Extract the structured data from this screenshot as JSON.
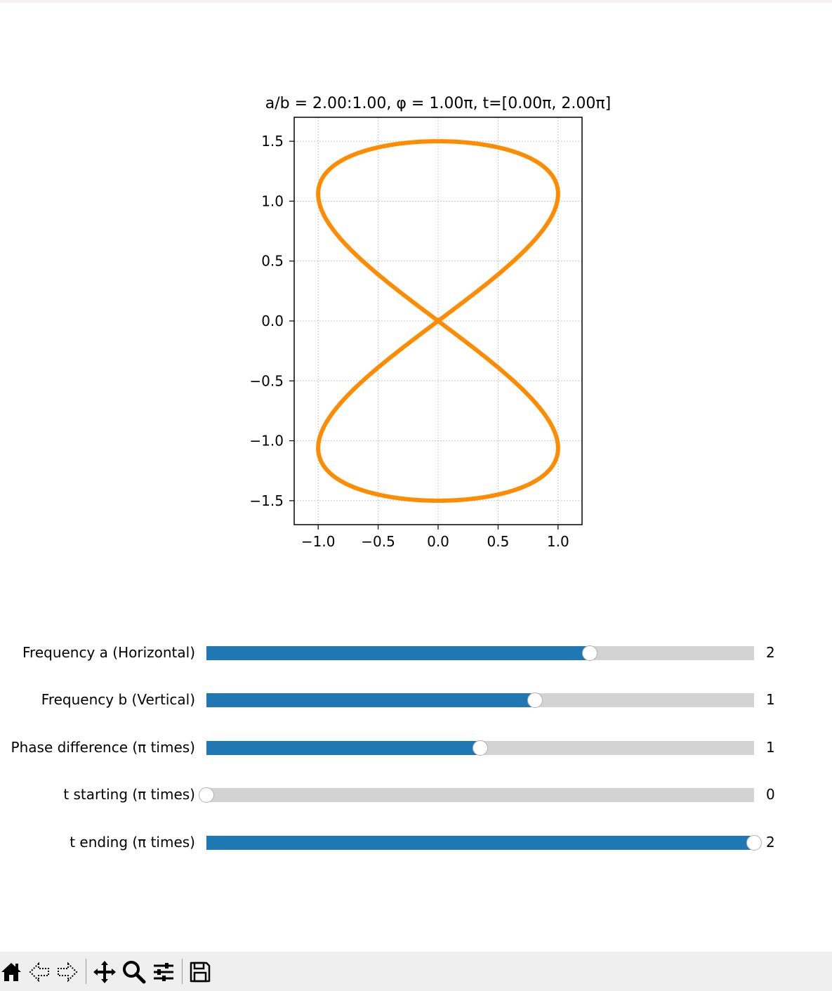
{
  "window": {
    "toolbar": {
      "buttons": [
        {
          "icon": "home-icon",
          "tooltip": "Reset original view"
        },
        {
          "icon": "back-arrow-icon",
          "tooltip": "Back"
        },
        {
          "icon": "forward-arrow-icon",
          "tooltip": "Forward"
        },
        {
          "icon": "pan-move-icon",
          "tooltip": "Pan"
        },
        {
          "icon": "zoom-magnifier-icon",
          "tooltip": "Zoom"
        },
        {
          "icon": "configure-subplots-icon",
          "tooltip": "Configure subplots"
        },
        {
          "icon": "save-floppy-icon",
          "tooltip": "Save"
        }
      ]
    }
  },
  "chart_data": {
    "type": "line",
    "title": "a/b = 2.00:1.00, φ = 1.00π, t=[0.00π, 2.00π]",
    "xlabel": "",
    "ylabel": "",
    "xlim": [
      -1.2,
      1.2
    ],
    "ylim": [
      -1.7,
      1.7
    ],
    "xticks": [
      -1.0,
      -0.5,
      0.0,
      0.5,
      1.0
    ],
    "xtick_labels": [
      "−1.0",
      "−0.5",
      "0.0",
      "0.5",
      "1.0"
    ],
    "yticks": [
      1.5,
      1.0,
      0.5,
      0.0,
      -0.5,
      -1.0,
      -1.5
    ],
    "ytick_labels": [
      "1.5",
      "1.0",
      "0.5",
      "0.0",
      "−0.5",
      "−1.0",
      "−1.5"
    ],
    "grid": true,
    "series": [
      {
        "color": "#ff8c00",
        "curve": "lissajous",
        "x_formula": "sin(a*t + phi)",
        "y_formula": "1.5*sin(b*t)",
        "a": 2,
        "b": 1,
        "phi_pi": 1,
        "t_start_pi": 0,
        "t_end_pi": 2
      }
    ]
  },
  "sliders": [
    {
      "label": "Frequency a (Horizontal)",
      "value": "2",
      "fraction": 0.7
    },
    {
      "label": "Frequency b (Vertical)",
      "value": "1",
      "fraction": 0.6
    },
    {
      "label": "Phase difference (π times)",
      "value": "1",
      "fraction": 0.5
    },
    {
      "label": "t starting (π times)",
      "value": "0",
      "fraction": 0.0
    },
    {
      "label": "t ending (π times)",
      "value": "2",
      "fraction": 1.0
    }
  ]
}
